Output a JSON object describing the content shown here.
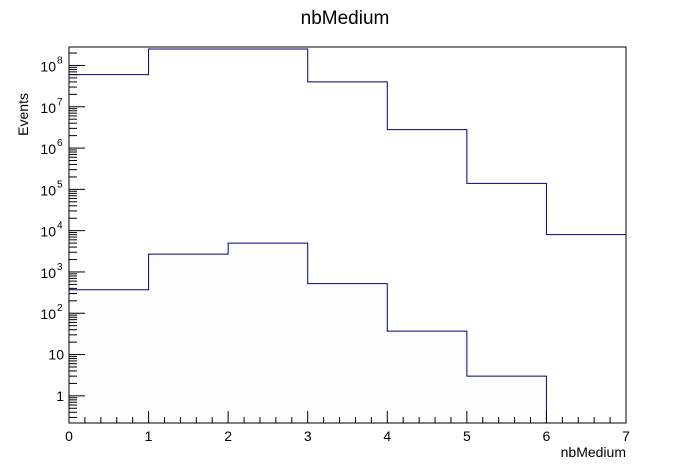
{
  "chart_data": {
    "type": "step-histogram",
    "title": "nbMedium",
    "xlabel": "nbMedium",
    "ylabel": "Events",
    "xlim": [
      0,
      7
    ],
    "ylim": [
      0.22,
      280000000
    ],
    "yscale": "log",
    "x_ticks": [
      "0",
      "1",
      "2",
      "3",
      "4",
      "5",
      "6",
      "7"
    ],
    "y_ticks": [
      {
        "value": 1,
        "base": "1",
        "exp": ""
      },
      {
        "value": 10,
        "base": "10",
        "exp": ""
      },
      {
        "value": 100,
        "base": "10",
        "exp": "2"
      },
      {
        "value": 1000,
        "base": "10",
        "exp": "3"
      },
      {
        "value": 10000,
        "base": "10",
        "exp": "4"
      },
      {
        "value": 100000,
        "base": "10",
        "exp": "5"
      },
      {
        "value": 1000000,
        "base": "10",
        "exp": "6"
      },
      {
        "value": 10000000,
        "base": "10",
        "exp": "7"
      },
      {
        "value": 100000000,
        "base": "10",
        "exp": "8"
      }
    ],
    "bin_edges": [
      0,
      1,
      2,
      3,
      4,
      5,
      6,
      7
    ],
    "series": [
      {
        "color": "#000080",
        "values": [
          60000000,
          250000000,
          250000000,
          40000000,
          2800000,
          140000,
          8000
        ]
      },
      {
        "color": "#000080",
        "fill": "#fcfcfc",
        "values": [
          370,
          2700,
          5000,
          520,
          37,
          3,
          0
        ]
      }
    ]
  }
}
